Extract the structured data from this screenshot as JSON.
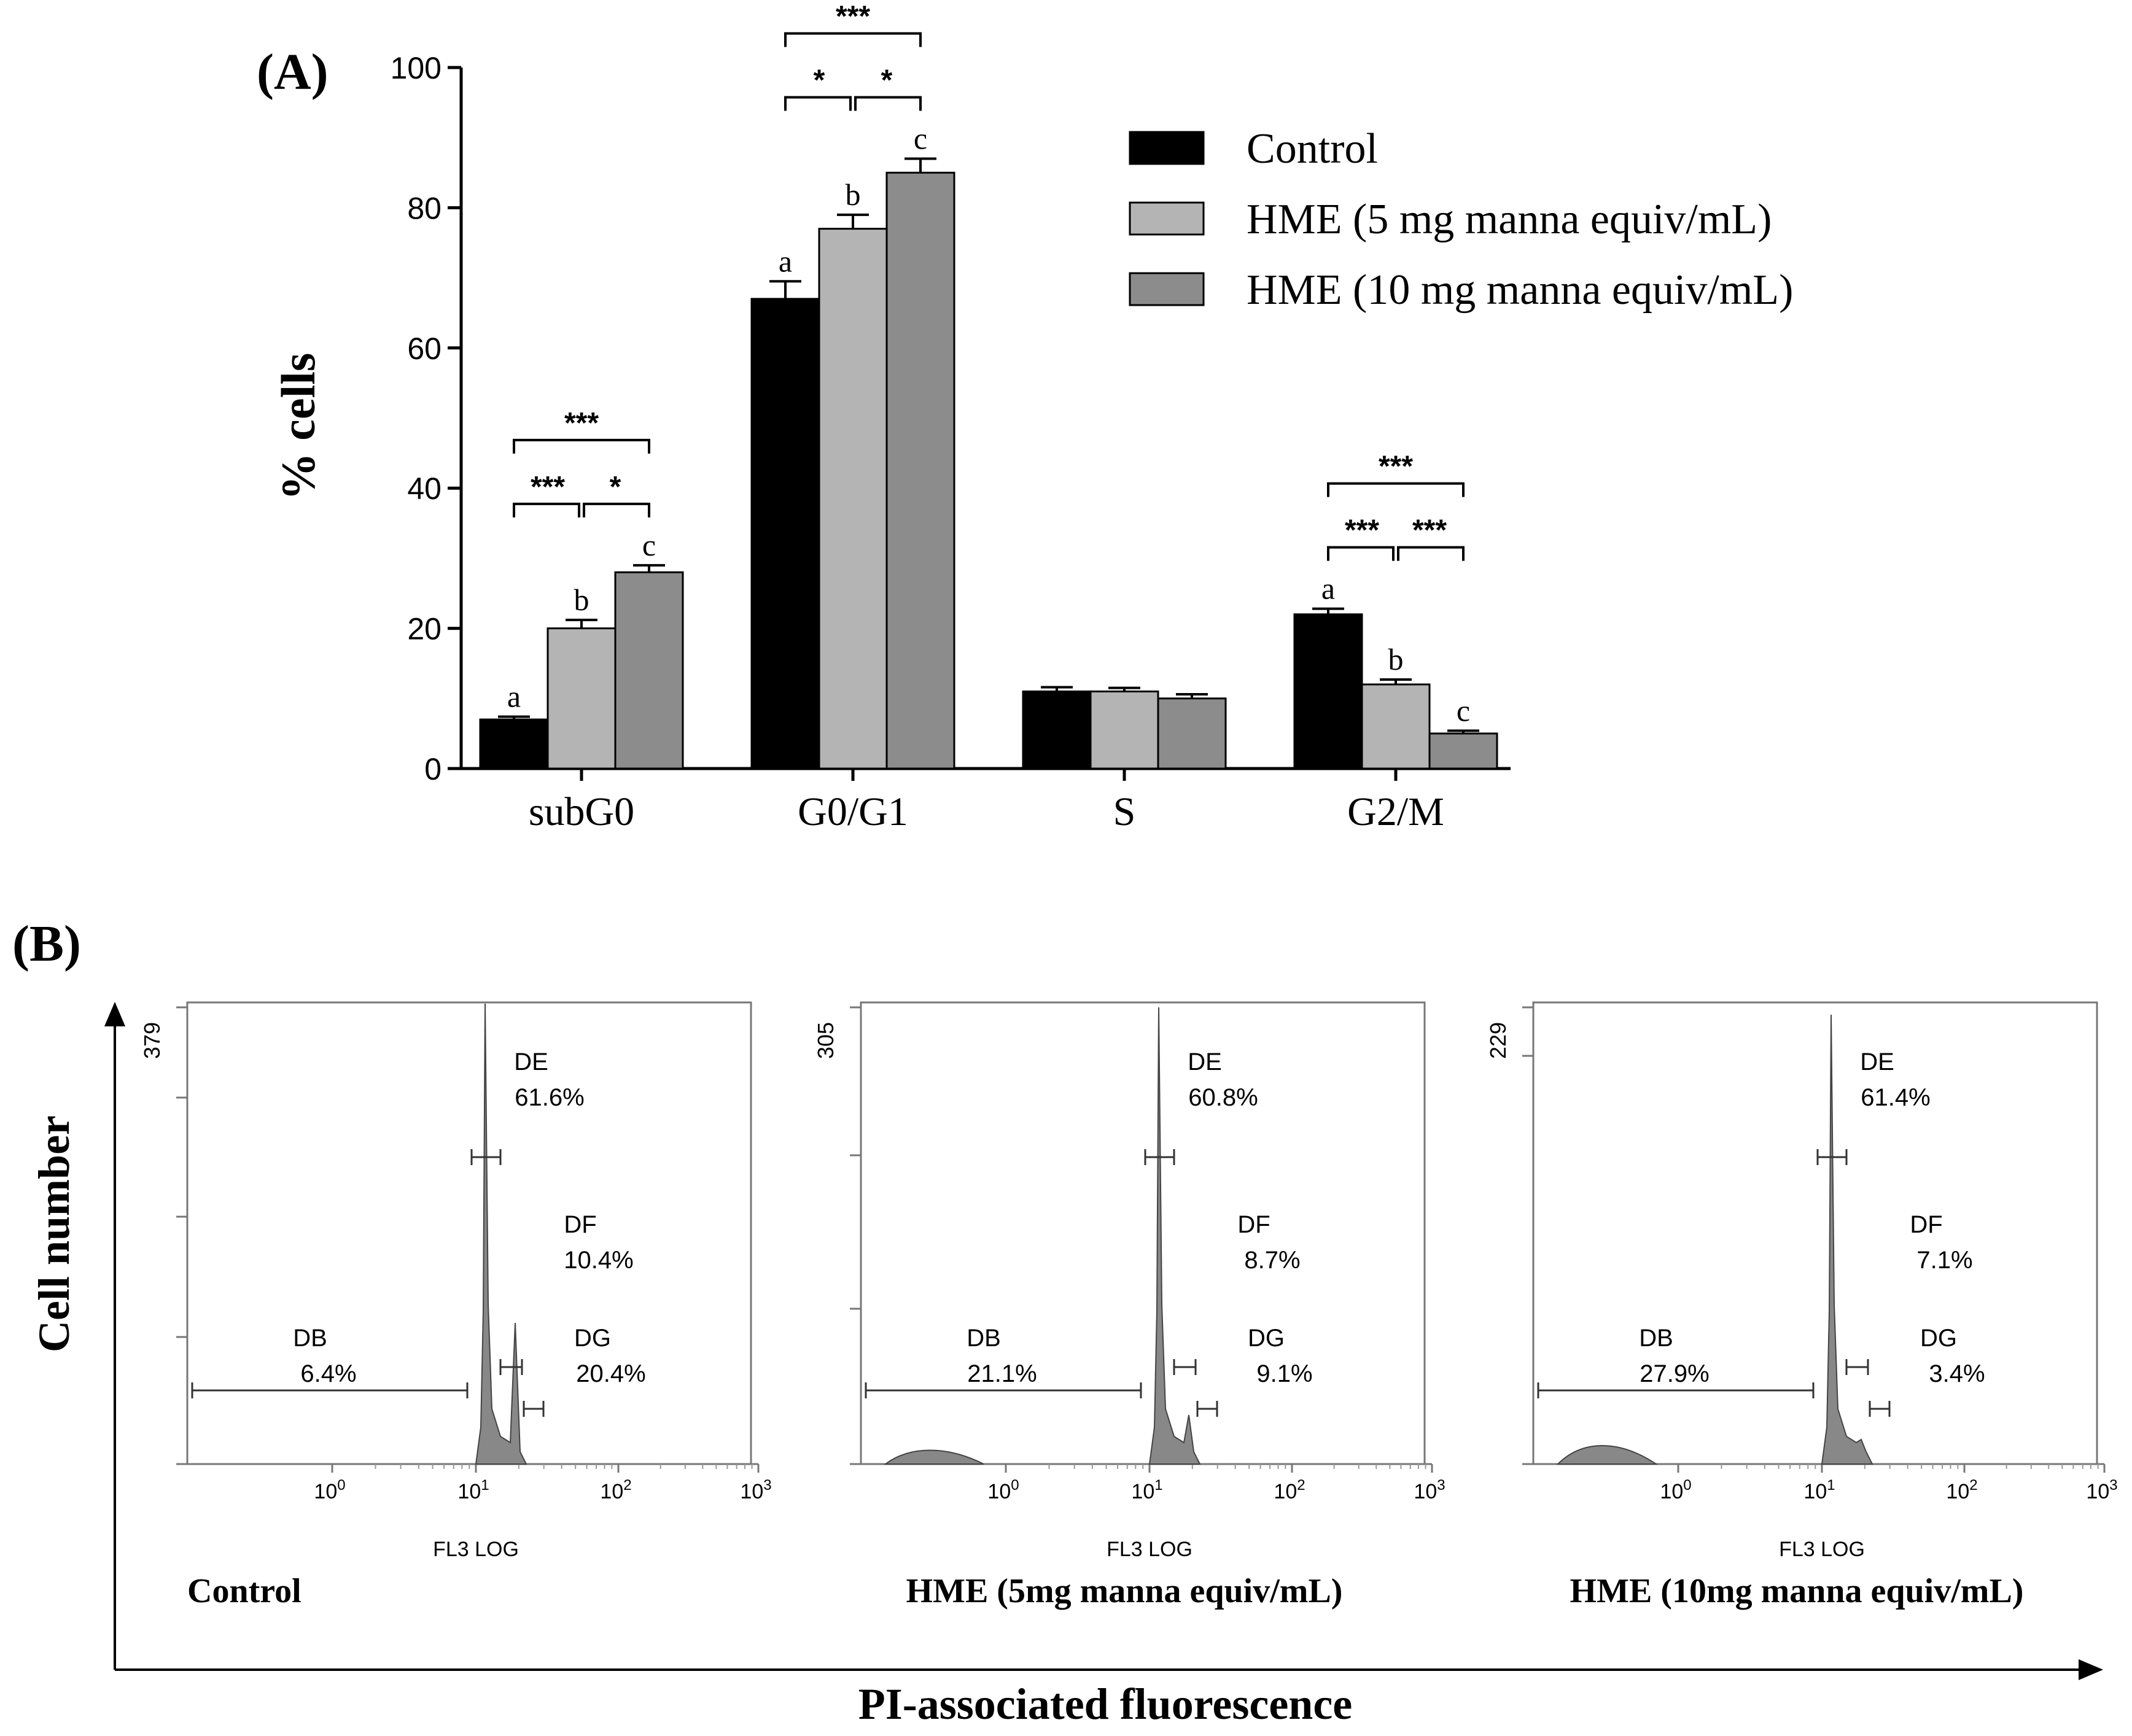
{
  "panel_a": {
    "panel_label": "(A)",
    "sig_stars": {
      "one": "*",
      "three": "***"
    }
  },
  "panel_b": {
    "panel_label": "(B)",
    "y_axis_title": "Cell number",
    "x_axis_title": "PI-associated fluorescence",
    "x_axis_label": "FL3 LOG",
    "tick_base": "10",
    "tick_exponents": [
      "0",
      "1",
      "2",
      "3"
    ],
    "histograms": [
      {
        "caption": "Control",
        "y_max_label": "379",
        "gates": [
          {
            "name": "DE",
            "pct": "61.6%"
          },
          {
            "name": "DF",
            "pct": "10.4%"
          },
          {
            "name": "DB",
            "pct": "6.4%"
          },
          {
            "name": "DG",
            "pct": "20.4%"
          }
        ]
      },
      {
        "caption": "HME (5mg manna equiv/mL)",
        "y_max_label": "305",
        "gates": [
          {
            "name": "DE",
            "pct": "60.8%"
          },
          {
            "name": "DF",
            "pct": "8.7%"
          },
          {
            "name": "DB",
            "pct": "21.1%"
          },
          {
            "name": "DG",
            "pct": "9.1%"
          }
        ]
      },
      {
        "caption": "HME (10mg manna equiv/mL)",
        "y_max_label": "229",
        "gates": [
          {
            "name": "DE",
            "pct": "61.4%"
          },
          {
            "name": "DF",
            "pct": "7.1%"
          },
          {
            "name": "DB",
            "pct": "27.9%"
          },
          {
            "name": "DG",
            "pct": "3.4%"
          }
        ]
      }
    ]
  },
  "chart_data": [
    {
      "type": "bar",
      "title": "",
      "xlabel": "",
      "ylabel": "% cells",
      "ylim": [
        0,
        100
      ],
      "yticks": [
        0,
        20,
        40,
        60,
        80,
        100
      ],
      "categories": [
        "subG0",
        "G0/G1",
        "S",
        "G2/M"
      ],
      "series": [
        {
          "name": "Control",
          "color": "#000000",
          "values": [
            7,
            67,
            11,
            22
          ],
          "errors": [
            0.4,
            2.5,
            0.6,
            0.8
          ],
          "letters": [
            "a",
            "a",
            "",
            "a"
          ]
        },
        {
          "name": "HME (5 mg manna equiv/mL)",
          "color": "#b4b4b4",
          "values": [
            20,
            77,
            11,
            12
          ],
          "errors": [
            1.2,
            2.0,
            0.5,
            0.7
          ],
          "letters": [
            "b",
            "b",
            "",
            "b"
          ]
        },
        {
          "name": "HME (10 mg manna equiv/mL)",
          "color": "#8c8c8c",
          "values": [
            28,
            85,
            10,
            5
          ],
          "errors": [
            1.0,
            2.0,
            0.6,
            0.4
          ],
          "letters": [
            "c",
            "c",
            "",
            "c"
          ]
        }
      ],
      "legend": "top-right",
      "significance": [
        {
          "category": "subG0",
          "pairs": [
            {
              "from": 0,
              "to": 1,
              "label": "***"
            },
            {
              "from": 1,
              "to": 2,
              "label": "*"
            },
            {
              "from": 0,
              "to": 2,
              "label": "***"
            }
          ]
        },
        {
          "category": "G0/G1",
          "pairs": [
            {
              "from": 0,
              "to": 1,
              "label": "*"
            },
            {
              "from": 1,
              "to": 2,
              "label": "*"
            },
            {
              "from": 0,
              "to": 2,
              "label": "***"
            }
          ]
        },
        {
          "category": "G2/M",
          "pairs": [
            {
              "from": 0,
              "to": 1,
              "label": "***"
            },
            {
              "from": 1,
              "to": 2,
              "label": "***"
            },
            {
              "from": 0,
              "to": 2,
              "label": "***"
            }
          ]
        }
      ]
    },
    {
      "type": "histogram",
      "xlabel": "FL3 LOG",
      "x_scale": "log",
      "x_range": [
        0.1,
        1000
      ],
      "panels": [
        {
          "name": "Control",
          "y_max": 379,
          "DE": 61.6,
          "DF": 10.4,
          "DB": 6.4,
          "DG": 20.4
        },
        {
          "name": "HME (5mg manna equiv/mL)",
          "y_max": 305,
          "DE": 60.8,
          "DF": 8.7,
          "DB": 21.1,
          "DG": 9.1
        },
        {
          "name": "HME (10mg manna equiv/mL)",
          "y_max": 229,
          "DE": 61.4,
          "DF": 7.1,
          "DB": 27.9,
          "DG": 3.4
        }
      ]
    }
  ]
}
